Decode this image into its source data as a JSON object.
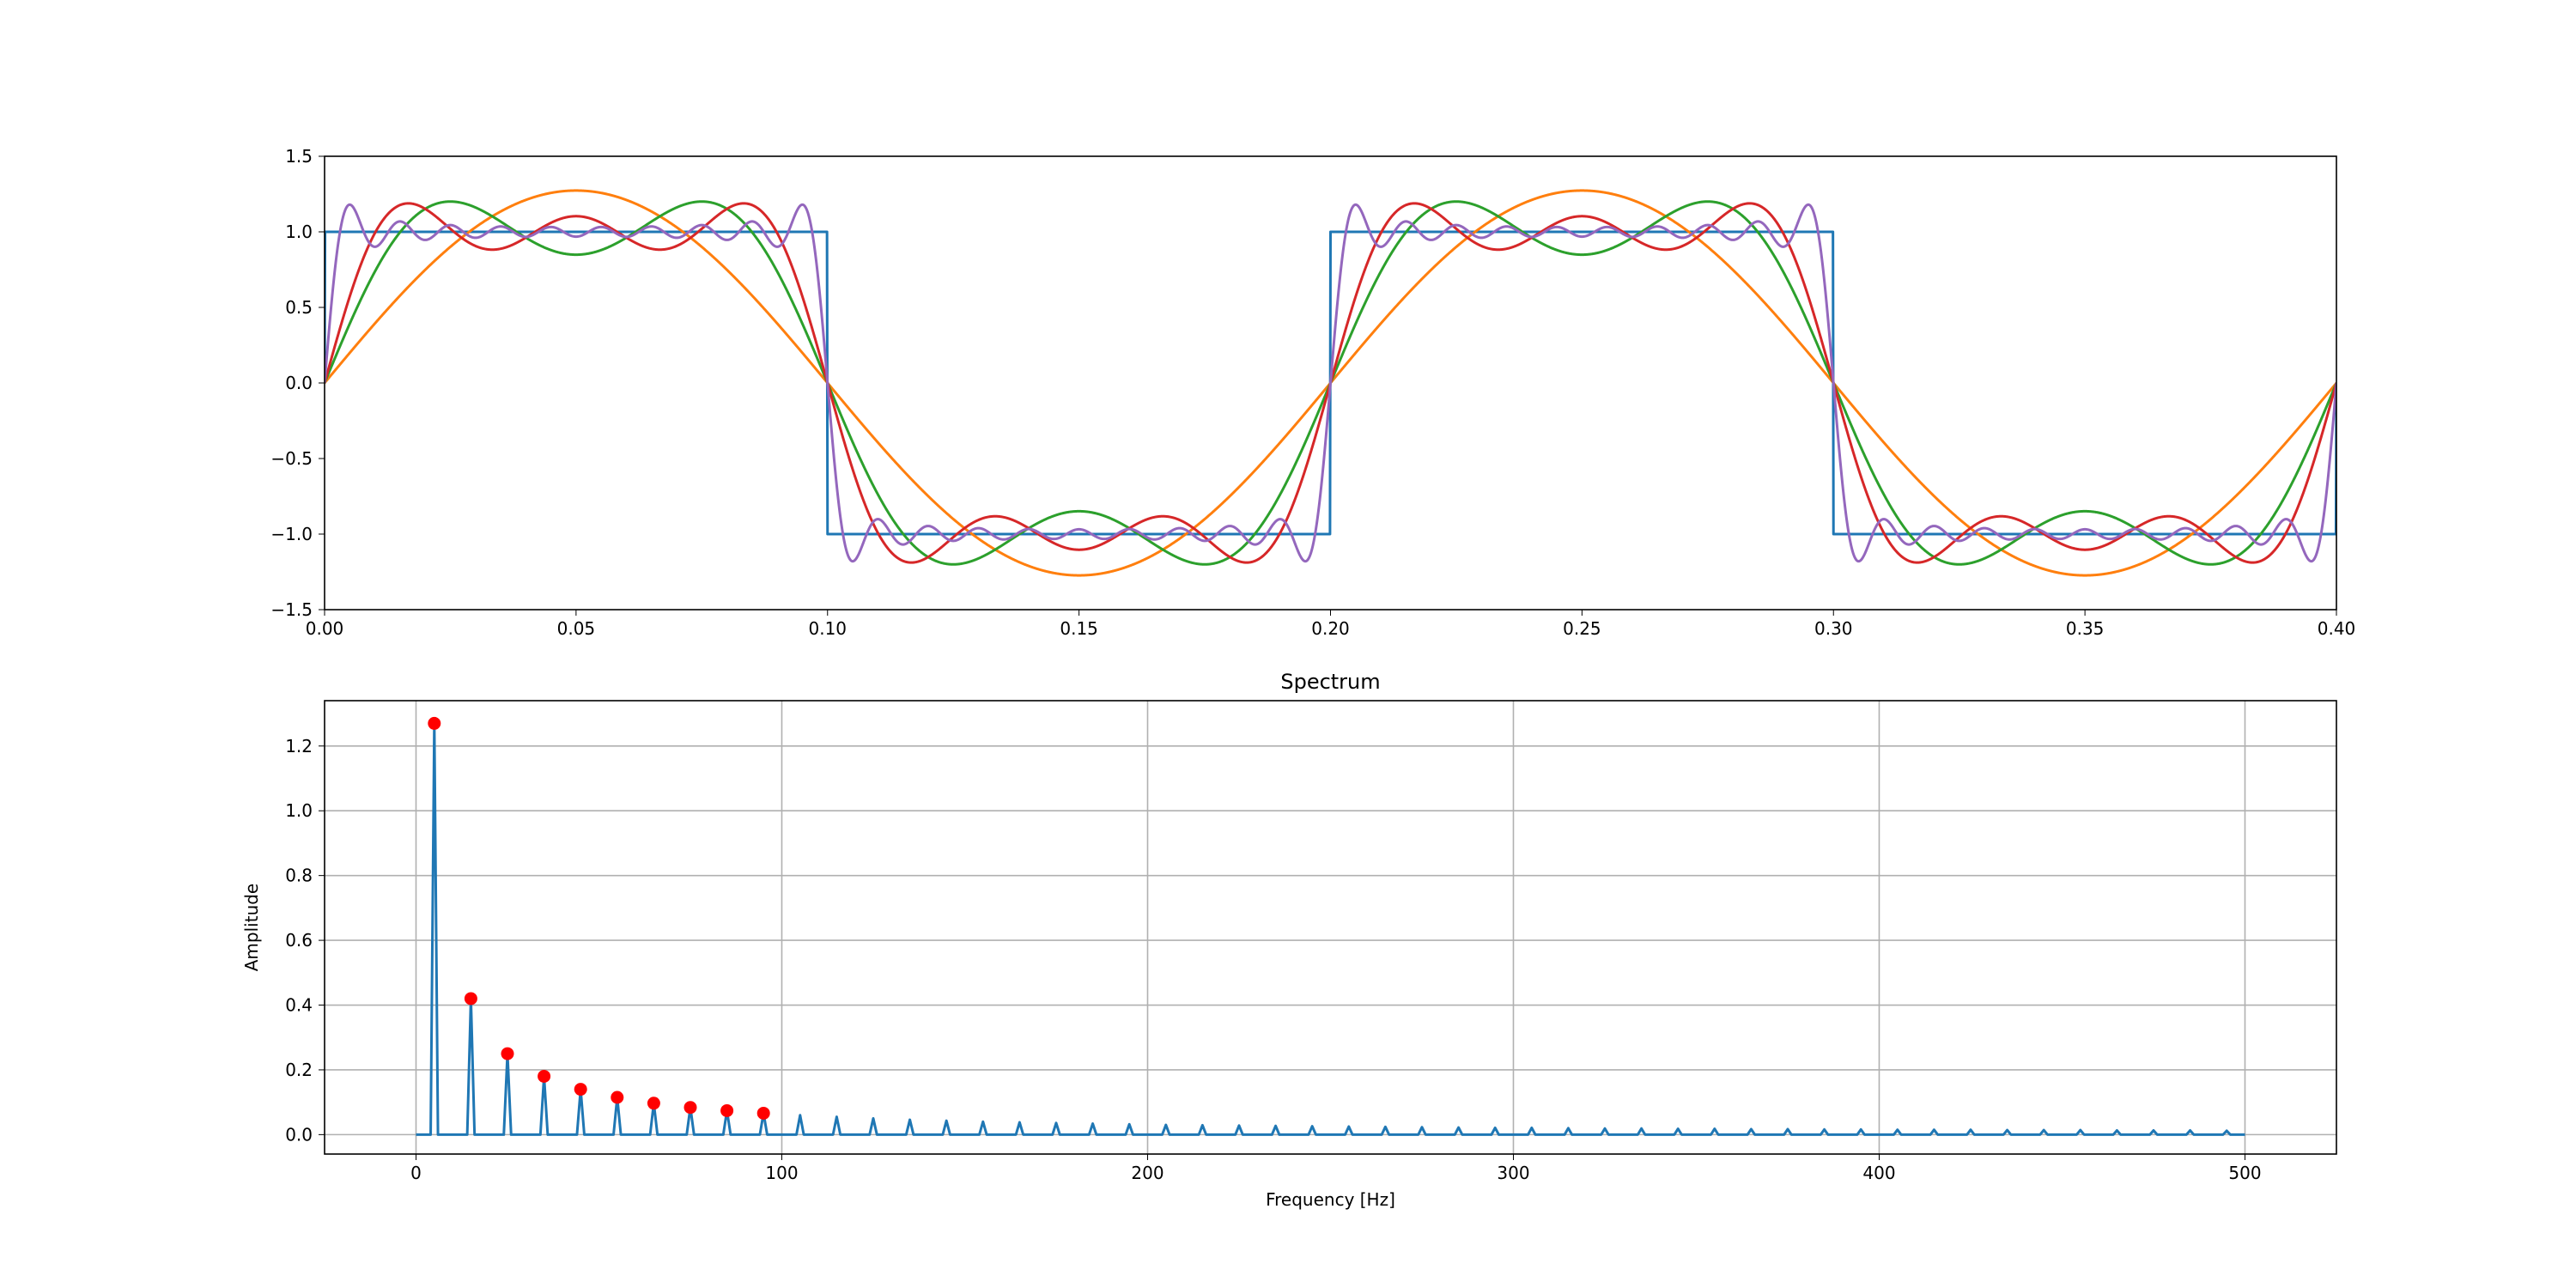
{
  "chart_data": [
    {
      "type": "line",
      "title": "",
      "xlabel": "",
      "ylabel": "",
      "xlim": [
        0.0,
        0.4
      ],
      "ylim": [
        -1.5,
        1.5
      ],
      "xticks": [
        0.0,
        0.05,
        0.1,
        0.15,
        0.2,
        0.25,
        0.3,
        0.35,
        0.4
      ],
      "xtick_labels": [
        "0.00",
        "0.05",
        "0.10",
        "0.15",
        "0.20",
        "0.25",
        "0.30",
        "0.35",
        "0.40"
      ],
      "yticks": [
        -1.5,
        -1.0,
        -0.5,
        0.0,
        0.5,
        1.0,
        1.5
      ],
      "ytick_labels": [
        "−1.5",
        "−1.0",
        "−0.5",
        "0.0",
        "0.5",
        "1.0",
        "1.5"
      ],
      "grid": false,
      "fundamental_hz": 5,
      "series": [
        {
          "kind": "square_wave",
          "amplitude": 1,
          "color": "#1f77b4"
        },
        {
          "kind": "fourier_partial_sum",
          "harmonics": [
            1
          ],
          "color": "#ff7f0e"
        },
        {
          "kind": "fourier_partial_sum",
          "harmonics": [
            1,
            3
          ],
          "color": "#2ca02c"
        },
        {
          "kind": "fourier_partial_sum",
          "harmonics": [
            1,
            3,
            5
          ],
          "color": "#d62728"
        },
        {
          "kind": "fourier_partial_sum",
          "harmonics": [
            1,
            3,
            5,
            7,
            9,
            11,
            13,
            15,
            17,
            19
          ],
          "color": "#9467bd"
        }
      ]
    },
    {
      "type": "line",
      "title": "Spectrum",
      "xlabel": "Frequency [Hz]",
      "ylabel": "Amplitude",
      "xlim": [
        -25,
        525
      ],
      "ylim": [
        -0.06,
        1.34
      ],
      "xticks": [
        0,
        100,
        200,
        300,
        400,
        500
      ],
      "xtick_labels": [
        "0",
        "100",
        "200",
        "300",
        "400",
        "500"
      ],
      "yticks": [
        0.0,
        0.2,
        0.4,
        0.6,
        0.8,
        1.0,
        1.2
      ],
      "ytick_labels": [
        "0.0",
        "0.2",
        "0.4",
        "0.6",
        "0.8",
        "1.0",
        "1.2"
      ],
      "grid": true,
      "line_color": "#1f77b4",
      "line_x_range": [
        0,
        500
      ],
      "peak_frequencies": [
        5,
        15,
        25,
        35,
        45,
        55,
        65,
        75,
        85,
        95,
        105,
        115,
        125,
        135,
        145,
        155,
        165,
        175,
        185,
        195,
        205,
        215,
        225,
        235,
        245,
        255,
        265,
        275,
        285,
        295,
        305,
        315,
        325,
        335,
        345,
        355,
        365,
        375,
        385,
        395,
        405,
        415,
        425,
        435,
        445,
        455,
        465,
        475,
        485,
        495
      ],
      "peak_amplitudes": [
        1.27,
        0.42,
        0.25,
        0.18,
        0.14,
        0.115,
        0.097,
        0.084,
        0.074,
        0.066,
        0.06,
        0.055,
        0.05,
        0.046,
        0.043,
        0.04,
        0.038,
        0.036,
        0.034,
        0.032,
        0.03,
        0.029,
        0.028,
        0.027,
        0.026,
        0.025,
        0.024,
        0.023,
        0.022,
        0.021,
        0.021,
        0.02,
        0.019,
        0.019,
        0.018,
        0.018,
        0.017,
        0.017,
        0.016,
        0.016,
        0.015,
        0.015,
        0.015,
        0.014,
        0.014,
        0.014,
        0.013,
        0.013,
        0.013,
        0.012
      ],
      "markers": {
        "color": "#ff0000",
        "x": [
          5,
          15,
          25,
          35,
          45,
          55,
          65,
          75,
          85,
          95
        ],
        "y": [
          1.27,
          0.42,
          0.25,
          0.18,
          0.14,
          0.115,
          0.097,
          0.084,
          0.074,
          0.066
        ]
      }
    }
  ]
}
